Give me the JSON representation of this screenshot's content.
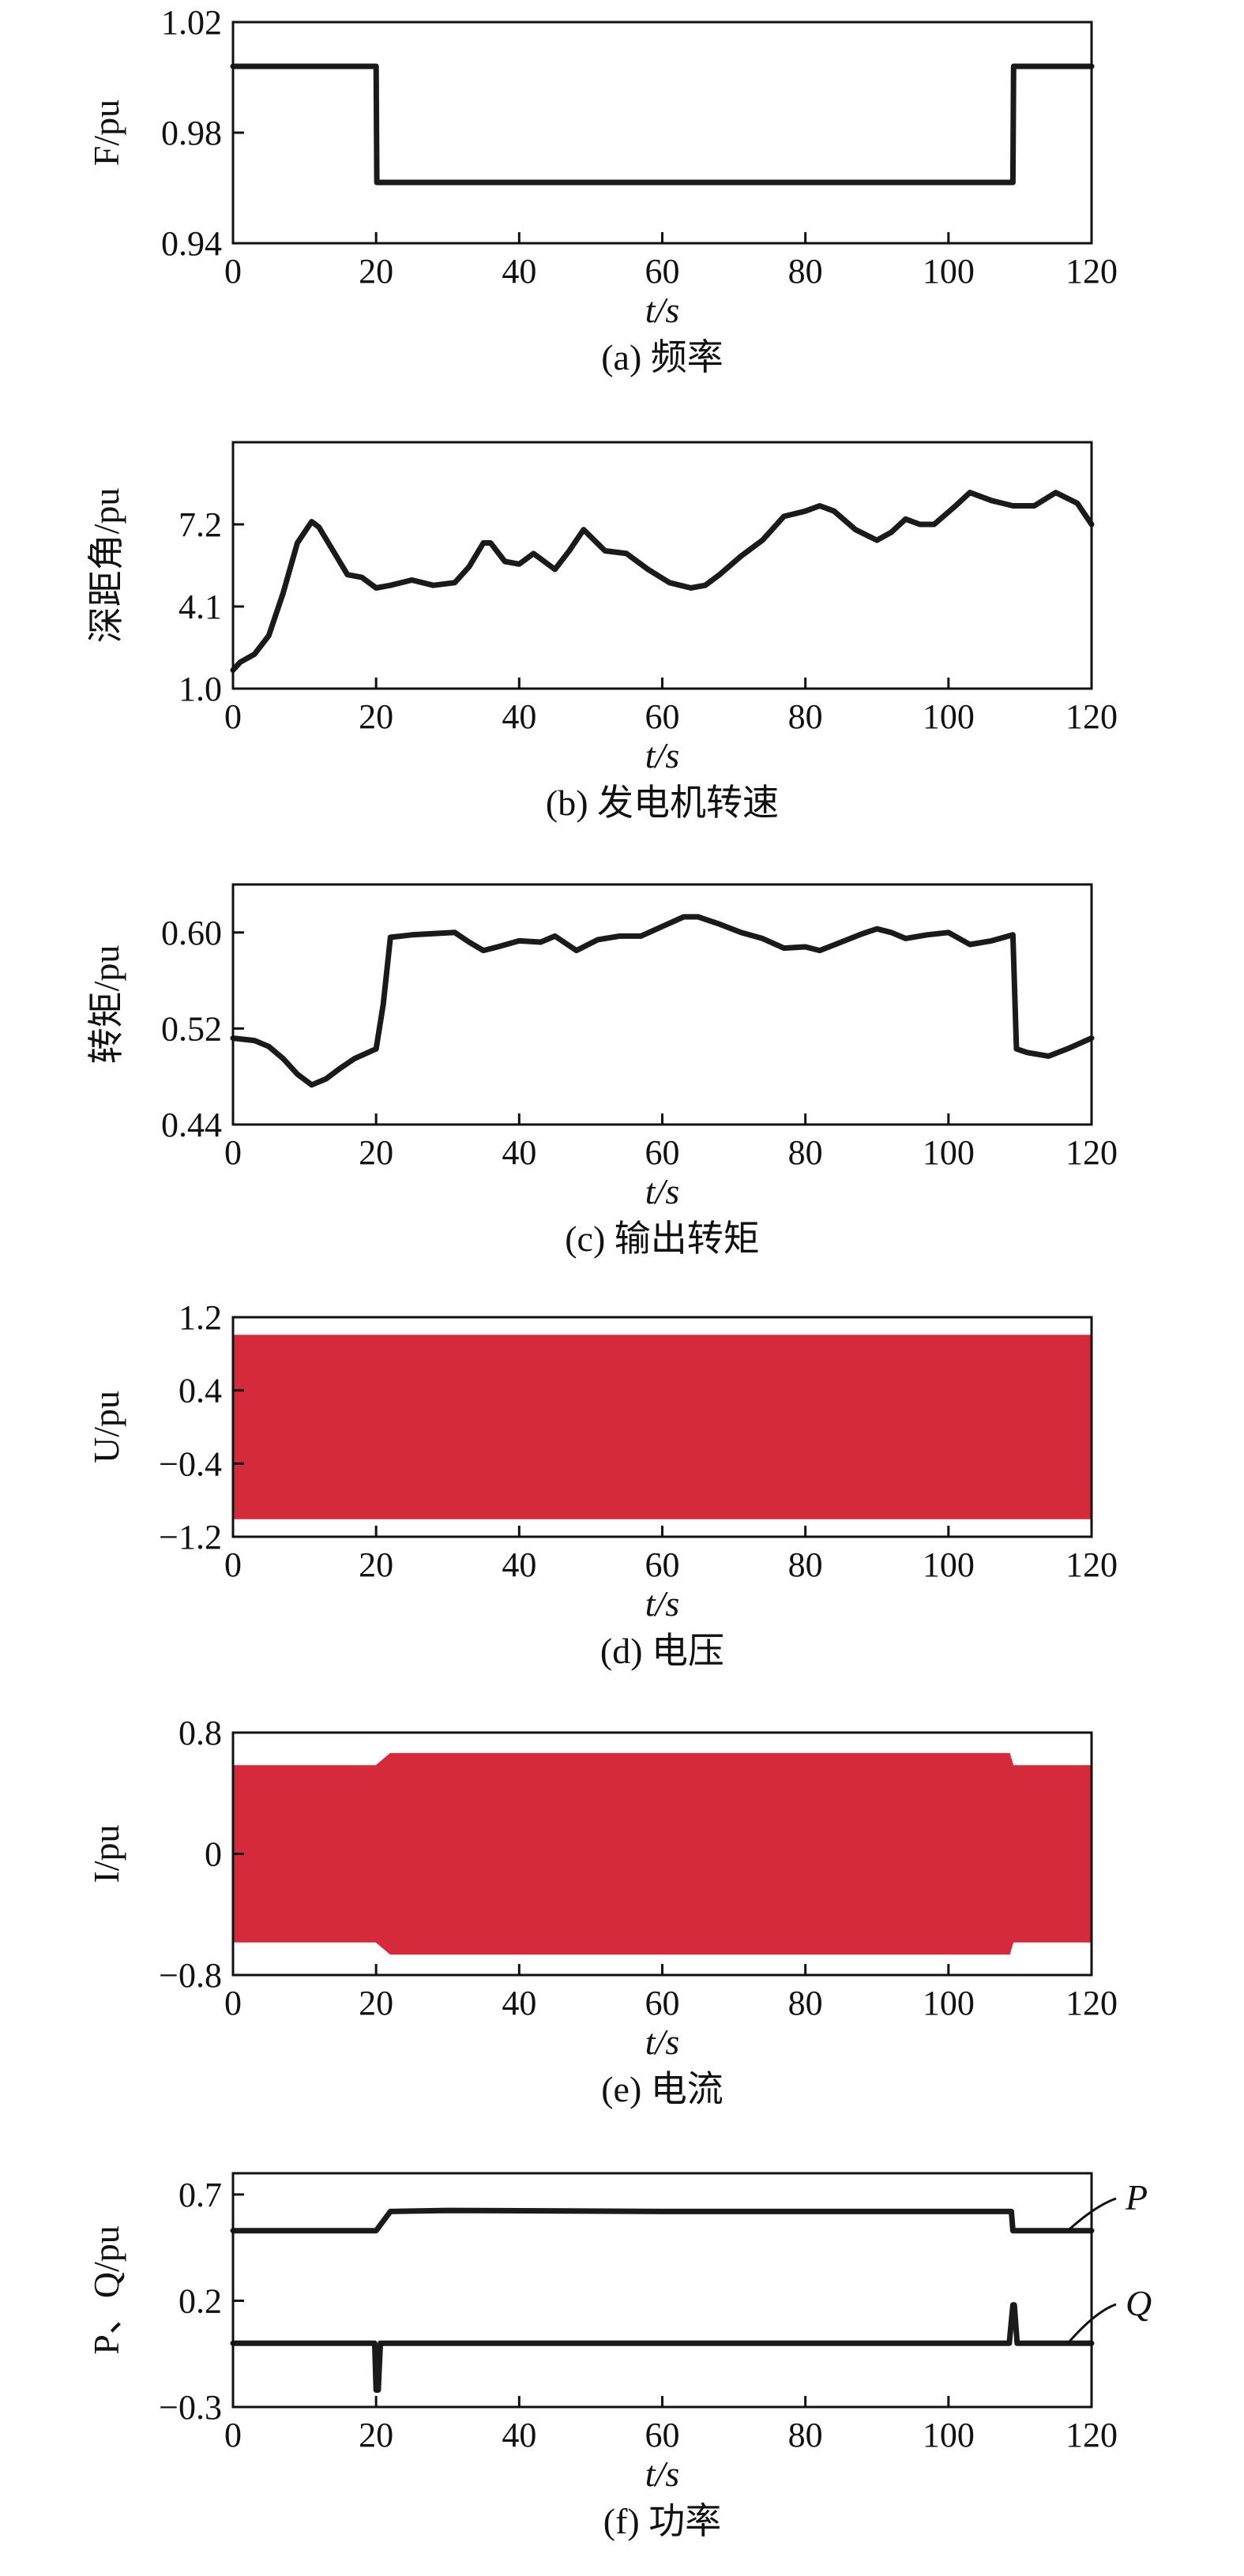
{
  "colors": {
    "line": "#1a1a1a",
    "fill_red": "#d42a3c",
    "axis": "#111111"
  },
  "chart_data": [
    {
      "id": "a",
      "type": "line",
      "caption": "(a) 频率",
      "ylabel": "F/pu",
      "xlabel": "t/s",
      "xlim": [
        0,
        120
      ],
      "ylim": [
        0.94,
        1.02
      ],
      "xticks": [
        "0",
        "20",
        "40",
        "60",
        "80",
        "100",
        "120"
      ],
      "yticks": [
        "0.94",
        "0.98",
        "1.02"
      ],
      "yticks_values": [
        0.94,
        0.98,
        1.02
      ],
      "series": [
        {
          "x": [
            0,
            20,
            20.1,
            109,
            109.1,
            120
          ],
          "y": [
            1.004,
            1.004,
            0.962,
            0.962,
            1.004,
            1.004
          ]
        }
      ]
    },
    {
      "id": "b",
      "type": "line",
      "caption": "(b) 发电机转速",
      "ylabel": "深距角/pu",
      "xlabel": "t/s",
      "xlim": [
        0,
        120
      ],
      "ylim": [
        1.0,
        10.3
      ],
      "xticks": [
        "0",
        "20",
        "40",
        "60",
        "80",
        "100",
        "120"
      ],
      "yticks": [
        "1.0",
        "4.1",
        "7.2"
      ],
      "yticks_values": [
        1.0,
        4.1,
        7.2
      ],
      "series": [
        {
          "x": [
            0,
            1,
            3,
            5,
            7,
            9,
            11,
            12,
            14,
            16,
            18,
            20,
            22,
            25,
            28,
            31,
            33,
            35,
            36,
            38,
            40,
            42,
            45,
            47,
            49,
            52,
            55,
            58,
            61,
            64,
            66,
            68,
            71,
            74,
            77,
            80,
            82,
            84,
            87,
            90,
            92,
            94,
            96,
            98,
            101,
            103,
            106,
            109,
            112,
            115,
            118,
            120
          ],
          "y": [
            1.7,
            2.0,
            2.3,
            3.0,
            4.6,
            6.5,
            7.3,
            7.1,
            6.2,
            5.3,
            5.2,
            4.8,
            4.9,
            5.1,
            4.9,
            5.0,
            5.6,
            6.5,
            6.5,
            5.8,
            5.7,
            6.1,
            5.5,
            6.2,
            7.0,
            6.2,
            6.1,
            5.5,
            5.0,
            4.8,
            4.9,
            5.3,
            6.0,
            6.6,
            7.5,
            7.7,
            7.9,
            7.7,
            7.0,
            6.6,
            6.9,
            7.4,
            7.2,
            7.2,
            7.9,
            8.4,
            8.1,
            7.9,
            7.9,
            8.4,
            8.0,
            7.2
          ]
        }
      ]
    },
    {
      "id": "c",
      "type": "line",
      "caption": "(c) 输出转矩",
      "ylabel": "转矩/pu",
      "xlabel": "t/s",
      "xlim": [
        0,
        120
      ],
      "ylim": [
        0.44,
        0.64
      ],
      "xticks": [
        "0",
        "20",
        "40",
        "60",
        "80",
        "100",
        "120"
      ],
      "yticks": [
        "0.44",
        "0.52",
        "0.60"
      ],
      "yticks_values": [
        0.44,
        0.52,
        0.6
      ],
      "series": [
        {
          "x": [
            0,
            3,
            5,
            7,
            9,
            11,
            13,
            15,
            17,
            20,
            21,
            22,
            25,
            28,
            31,
            33,
            35,
            37,
            40,
            43,
            45,
            48,
            51,
            54,
            57,
            60,
            63,
            65,
            68,
            71,
            74,
            77,
            80,
            82,
            85,
            88,
            90,
            92,
            94,
            97,
            100,
            103,
            106,
            109,
            109.5,
            111,
            114,
            117,
            120
          ],
          "y": [
            0.512,
            0.51,
            0.505,
            0.495,
            0.482,
            0.473,
            0.478,
            0.487,
            0.495,
            0.503,
            0.54,
            0.596,
            0.598,
            0.599,
            0.6,
            0.592,
            0.585,
            0.588,
            0.593,
            0.592,
            0.597,
            0.585,
            0.594,
            0.597,
            0.597,
            0.605,
            0.613,
            0.613,
            0.607,
            0.6,
            0.595,
            0.587,
            0.588,
            0.585,
            0.592,
            0.599,
            0.603,
            0.6,
            0.595,
            0.598,
            0.6,
            0.59,
            0.593,
            0.598,
            0.503,
            0.5,
            0.497,
            0.504,
            0.512
          ]
        }
      ]
    },
    {
      "id": "d",
      "type": "area",
      "caption": "(d) 电压",
      "ylabel": "U/pu",
      "xlabel": "t/s",
      "xlim": [
        0,
        120
      ],
      "ylim": [
        -1.2,
        1.2
      ],
      "xticks": [
        "0",
        "20",
        "40",
        "60",
        "80",
        "100",
        "120"
      ],
      "yticks": [
        "−1.2",
        "−0.4",
        "0.4",
        "1.2"
      ],
      "yticks_values": [
        -1.2,
        -0.4,
        0.4,
        1.2
      ],
      "series": [
        {
          "x": [
            0,
            120
          ],
          "upper": [
            1.0,
            1.0
          ],
          "lower": [
            -1.0,
            -1.0
          ]
        }
      ]
    },
    {
      "id": "e",
      "type": "area",
      "caption": "(e) 电流",
      "ylabel": "I/pu",
      "xlabel": "t/s",
      "xlim": [
        0,
        120
      ],
      "ylim": [
        -0.8,
        0.8
      ],
      "xticks": [
        "0",
        "20",
        "40",
        "60",
        "80",
        "100",
        "120"
      ],
      "yticks": [
        "−0.8",
        "0",
        "0.8"
      ],
      "yticks_values": [
        -0.8,
        0,
        0.8
      ],
      "series": [
        {
          "x": [
            0,
            20,
            22,
            108.5,
            109,
            120
          ],
          "upper": [
            0.58,
            0.58,
            0.66,
            0.66,
            0.58,
            0.58
          ],
          "lower": [
            -0.58,
            -0.58,
            -0.66,
            -0.66,
            -0.58,
            -0.58
          ]
        }
      ]
    },
    {
      "id": "f",
      "type": "line",
      "caption": "(f) 功率",
      "ylabel": "P、Q/pu",
      "xlabel": "t/s",
      "xlim": [
        0,
        120
      ],
      "ylim": [
        -0.3,
        0.8
      ],
      "xticks": [
        "0",
        "20",
        "40",
        "60",
        "80",
        "100",
        "120"
      ],
      "yticks": [
        "−0.3",
        "0.2",
        "0.7"
      ],
      "yticks_values": [
        -0.3,
        0.2,
        0.7
      ],
      "series": [
        {
          "name": "P",
          "x": [
            0,
            20,
            22,
            30,
            60,
            100,
            108.8,
            109,
            120
          ],
          "y": [
            0.53,
            0.53,
            0.62,
            0.625,
            0.62,
            0.62,
            0.62,
            0.53,
            0.53
          ]
        },
        {
          "name": "Q",
          "x": [
            0,
            19.8,
            20,
            20.3,
            20.6,
            108.5,
            109,
            109.2,
            109.6,
            120
          ],
          "y": [
            0.0,
            0.0,
            -0.22,
            -0.22,
            0.0,
            0.0,
            0.18,
            0.18,
            0.0,
            0.0
          ]
        }
      ]
    }
  ]
}
